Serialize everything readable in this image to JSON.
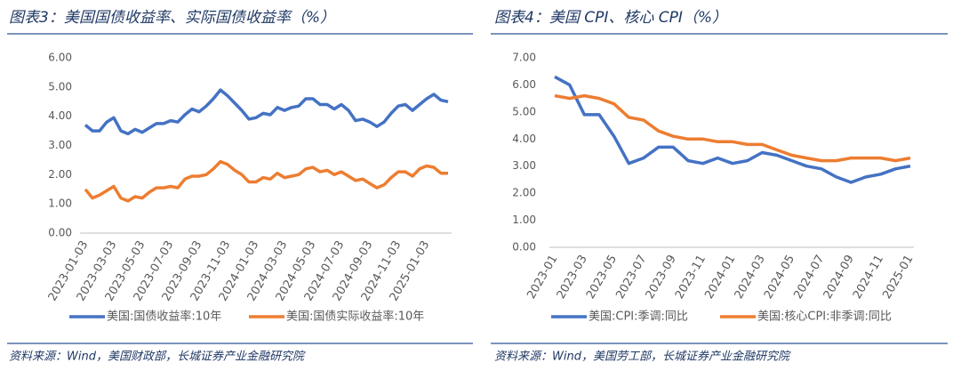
{
  "chart_data": [
    {
      "type": "line",
      "title": "图表3：美国国债收益率、实际国债收益率（%）",
      "source": "资料来源：Wind，美国财政部，长城证券产业金融研究院",
      "categories": [
        "2023-01-03",
        null,
        null,
        null,
        "2023-03-03",
        null,
        null,
        null,
        "2023-05-03",
        null,
        null,
        null,
        "2023-07-03",
        null,
        null,
        null,
        "2023-09-03",
        null,
        null,
        null,
        "2023-11-03",
        null,
        null,
        null,
        "2024-01-03",
        null,
        null,
        null,
        "2024-03-03",
        null,
        null,
        null,
        "2024-05-03",
        null,
        null,
        null,
        "2024-07-03",
        null,
        null,
        null,
        "2024-09-03",
        null,
        null,
        null,
        "2024-11-03",
        null,
        null,
        null,
        "2025-01-03",
        null,
        null,
        null
      ],
      "series": [
        {
          "name": "美国:国债收益率:10年",
          "color": "#4472c4",
          "values": [
            3.7,
            3.5,
            3.5,
            3.8,
            3.95,
            3.5,
            3.4,
            3.55,
            3.45,
            3.6,
            3.75,
            3.75,
            3.85,
            3.8,
            4.05,
            4.25,
            4.15,
            4.35,
            4.6,
            4.9,
            4.7,
            4.45,
            4.2,
            3.9,
            3.95,
            4.1,
            4.05,
            4.3,
            4.2,
            4.3,
            4.35,
            4.6,
            4.6,
            4.4,
            4.4,
            4.25,
            4.4,
            4.2,
            3.85,
            3.9,
            3.8,
            3.65,
            3.8,
            4.1,
            4.35,
            4.4,
            4.2,
            4.4,
            4.6,
            4.75,
            4.55,
            4.5
          ]
        },
        {
          "name": "美国:国债实际收益率:10年",
          "color": "#ed7d31",
          "values": [
            1.5,
            1.2,
            1.3,
            1.45,
            1.6,
            1.2,
            1.1,
            1.25,
            1.2,
            1.4,
            1.55,
            1.55,
            1.6,
            1.55,
            1.85,
            1.95,
            1.95,
            2.0,
            2.2,
            2.45,
            2.35,
            2.15,
            2.0,
            1.75,
            1.75,
            1.9,
            1.85,
            2.05,
            1.9,
            1.95,
            2.0,
            2.2,
            2.25,
            2.1,
            2.15,
            2.0,
            2.1,
            1.95,
            1.8,
            1.85,
            1.7,
            1.55,
            1.65,
            1.9,
            2.1,
            2.1,
            1.95,
            2.2,
            2.3,
            2.25,
            2.05,
            2.05
          ]
        }
      ],
      "ylim": [
        0,
        6
      ],
      "yticks": [
        {
          "value": 0,
          "label": "0.00"
        },
        {
          "value": 1,
          "label": "1.00"
        },
        {
          "value": 2,
          "label": "2.00"
        },
        {
          "value": 3,
          "label": "3.00"
        },
        {
          "value": 4,
          "label": "4.00"
        },
        {
          "value": 5,
          "label": "5.00"
        },
        {
          "value": 6,
          "label": "6.00"
        }
      ],
      "grid": false,
      "legend": "bottom"
    },
    {
      "type": "line",
      "title": "图表4：美国 CPI、核心 CPI（%）",
      "source": "资料来源：Wind，美国劳工部，长城证券产业金融研究院",
      "categories": [
        "2023-01",
        null,
        "2023-03",
        null,
        "2023-05",
        null,
        "2023-07",
        null,
        "2023-09",
        null,
        "2023-11",
        null,
        "2024-01",
        null,
        "2024-03",
        null,
        "2024-05",
        null,
        "2024-07",
        null,
        "2024-09",
        null,
        "2024-11",
        null,
        "2025-01"
      ],
      "series": [
        {
          "name": "美国:CPI:季调:同比",
          "color": "#4472c4",
          "values": [
            6.3,
            6.0,
            4.9,
            4.9,
            4.1,
            3.1,
            3.3,
            3.7,
            3.7,
            3.2,
            3.1,
            3.3,
            3.1,
            3.2,
            3.5,
            3.4,
            3.2,
            3.0,
            2.9,
            2.6,
            2.4,
            2.6,
            2.7,
            2.9,
            3.0
          ]
        },
        {
          "name": "美国:核心CPI:非季调:同比",
          "color": "#ed7d31",
          "values": [
            5.6,
            5.5,
            5.6,
            5.5,
            5.3,
            4.8,
            4.7,
            4.3,
            4.1,
            4.0,
            4.0,
            3.9,
            3.9,
            3.8,
            3.8,
            3.6,
            3.4,
            3.3,
            3.2,
            3.2,
            3.3,
            3.3,
            3.3,
            3.2,
            3.3
          ]
        }
      ],
      "ylim": [
        0,
        7
      ],
      "yticks": [
        {
          "value": 0,
          "label": "0.00"
        },
        {
          "value": 1,
          "label": "1.00"
        },
        {
          "value": 2,
          "label": "2.00"
        },
        {
          "value": 3,
          "label": "3.00"
        },
        {
          "value": 4,
          "label": "4.00"
        },
        {
          "value": 5,
          "label": "5.00"
        },
        {
          "value": 6,
          "label": "6.00"
        },
        {
          "value": 7,
          "label": "7.00"
        }
      ],
      "grid": false,
      "legend": "bottom"
    }
  ]
}
